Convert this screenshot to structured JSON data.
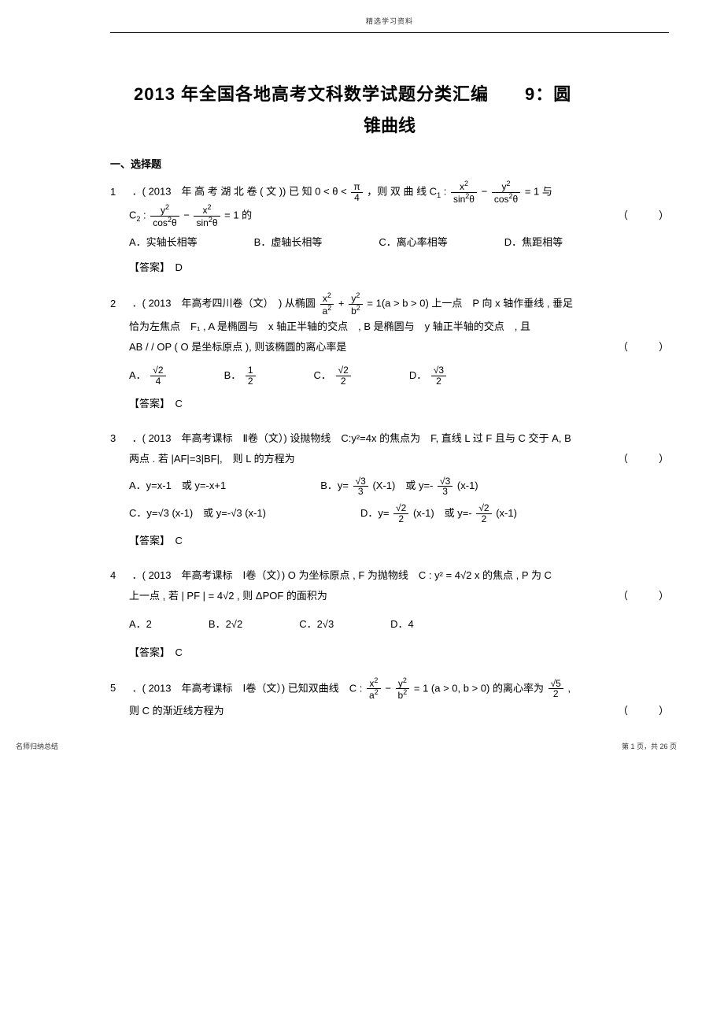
{
  "header_small": "精选学习资料",
  "title_line1": "2013 年全国各地高考文科数学试题分类汇编　　9：圆",
  "title_line2": "锥曲线",
  "section_heading": "一、选择题",
  "questions": {
    "q1": {
      "num": "1",
      "src": "．( 2013　年 高 考 湖 北 卷 ( 文 )) 已 知 ",
      "cond": "0 < θ <",
      "then": "，则 双 曲 线 C",
      "with": "与",
      "c2_prefix": "C",
      "c2_eq_suffix": " = 1 的",
      "choices": {
        "A": "A．实轴长相等",
        "B": "B．虚轴长相等",
        "C": "C．离心率相等",
        "D": "D．焦距相等"
      },
      "answer": "【答案】　D"
    },
    "q2": {
      "num": "2",
      "src": "．( 2013　年高考四川卷（文）　) 从椭圆 ",
      "eq_suffix": " = 1(a > b > 0) 上一点　P 向 x 轴作垂线 , 垂足",
      "line2": "恰为左焦点　F₁ , A 是椭圆与　x 轴正半轴的交点　, B 是椭圆与　y 轴正半轴的交点　, 且",
      "line3": "AB / / OP ( O 是坐标原点 ), 则该椭圆的离心率是",
      "A": "A．",
      "B": "B．",
      "C": "C．",
      "D": "D．",
      "answer": "【答案】　C"
    },
    "q3": {
      "num": "3",
      "src": "．( 2013　年高考课标　Ⅱ卷（文）) 设抛物线　C:y²=4x 的焦点为　F, 直线 L 过 F 且与 C 交于 A, B",
      "line2": "两点 . 若 |AF|=3|BF|,　则 L 的方程为",
      "A": "A．y=x-1　或 y=-x+1",
      "B_pre": "B．y=",
      "B_mid": "(X-1)　或 y=-",
      "B_suf": "(x-1)",
      "C_pre": "C．y=",
      "C_mid": "(x-1)　或 y=-",
      "C_suf": "(x-1)",
      "D_pre": "D．y=",
      "D_mid": "(x-1)　或 y=-",
      "D_suf": "(x-1)",
      "answer": "【答案】　C"
    },
    "q4": {
      "num": "4",
      "src": "．( 2013　年高考课标　Ⅰ卷（文）) O 为坐标原点 , F 为抛物线　C : y² = 4√2 x 的焦点 , P 为 C",
      "line2_pre": "上一点 , 若 | PF | = 4√2 , 则 ΔPOF 的面积为",
      "A": "A．2",
      "B": "B．2√2",
      "C": "C．2√3",
      "D": "D．4",
      "answer": "【答案】　C"
    },
    "q5": {
      "num": "5",
      "src": "．( 2013　年高考课标　Ⅰ卷（文）) 已知双曲线　C :",
      "mid": " = 1 (a > 0, b > 0) 的离心率为 ",
      "suf": " ,",
      "line2": "则 C 的渐近线方程为"
    }
  },
  "paren": "（　　　）",
  "footer_left": "名师归纳总结",
  "footer_right": "第 1 页，共 26 页",
  "colors": {
    "text": "#000000",
    "bg": "#ffffff"
  }
}
